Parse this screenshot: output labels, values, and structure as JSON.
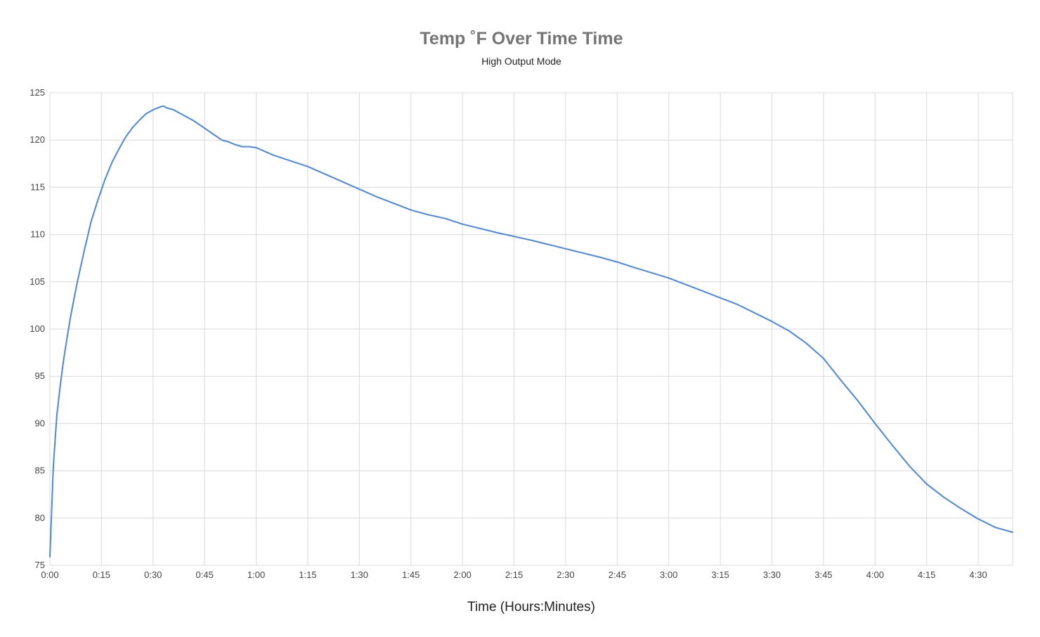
{
  "chart_data": {
    "type": "line",
    "title": "Temp ˚F Over Time Time",
    "subtitle": "High Output Mode",
    "xlabel": "Time (Hours:Minutes)",
    "ylabel": "",
    "ylim": [
      75,
      125
    ],
    "y_ticks": [
      "75",
      "80",
      "85",
      "90",
      "95",
      "100",
      "105",
      "110",
      "115",
      "120",
      "125"
    ],
    "xlim_minutes": [
      0,
      280
    ],
    "x_ticks": [
      "0:00",
      "0:15",
      "0:30",
      "0:45",
      "1:00",
      "1:15",
      "1:30",
      "1:45",
      "2:00",
      "2:15",
      "2:30",
      "2:45",
      "3:00",
      "3:15",
      "3:30",
      "3:45",
      "4:00",
      "4:15",
      "4:30"
    ],
    "grid": true,
    "legend": "none",
    "colors": {
      "line": "#4a86e8",
      "grid": "#d9d9d9",
      "title": "#757575"
    },
    "series": [
      {
        "x": [
          "0:00",
          "0:01",
          "0:02",
          "0:03",
          "0:04",
          "0:05",
          "0:06",
          "0:07",
          "0:08",
          "0:10",
          "0:12",
          "0:14",
          "0:16",
          "0:18",
          "0:20",
          "0:22",
          "0:24",
          "0:26",
          "0:28",
          "0:30",
          "0:32",
          "0:33",
          "0:34",
          "0:36",
          "0:38",
          "0:40",
          "0:42",
          "0:44",
          "0:46",
          "0:48",
          "0:50",
          "0:52",
          "0:54",
          "0:56",
          "0:58",
          "1:00",
          "1:05",
          "1:10",
          "1:15",
          "1:20",
          "1:25",
          "1:30",
          "1:35",
          "1:40",
          "1:45",
          "1:50",
          "1:55",
          "2:00",
          "2:10",
          "2:20",
          "2:30",
          "2:40",
          "2:45",
          "2:50",
          "3:00",
          "3:10",
          "3:20",
          "3:30",
          "3:35",
          "3:40",
          "3:45",
          "3:50",
          "3:55",
          "4:00",
          "4:05",
          "4:10",
          "4:15",
          "4:20",
          "4:25",
          "4:30",
          "4:35",
          "4:40"
        ],
        "y": [
          75.9,
          85.5,
          90.8,
          94.0,
          96.8,
          99.1,
          101.3,
          103.2,
          105.0,
          108.3,
          111.4,
          113.7,
          115.8,
          117.6,
          119.0,
          120.3,
          121.3,
          122.1,
          122.8,
          123.2,
          123.5,
          123.6,
          123.4,
          123.2,
          122.8,
          122.4,
          122.0,
          121.5,
          121.0,
          120.5,
          120.0,
          119.8,
          119.5,
          119.3,
          119.3,
          119.2,
          118.4,
          117.8,
          117.2,
          116.4,
          115.6,
          114.8,
          114.0,
          113.3,
          112.6,
          112.1,
          111.7,
          111.1,
          110.2,
          109.4,
          108.5,
          107.6,
          107.1,
          106.5,
          105.4,
          104.0,
          102.6,
          100.8,
          99.8,
          98.5,
          96.9,
          94.6,
          92.4,
          90.0,
          87.7,
          85.5,
          83.6,
          82.2,
          81.0,
          79.9,
          79.0,
          78.5
        ]
      }
    ]
  }
}
